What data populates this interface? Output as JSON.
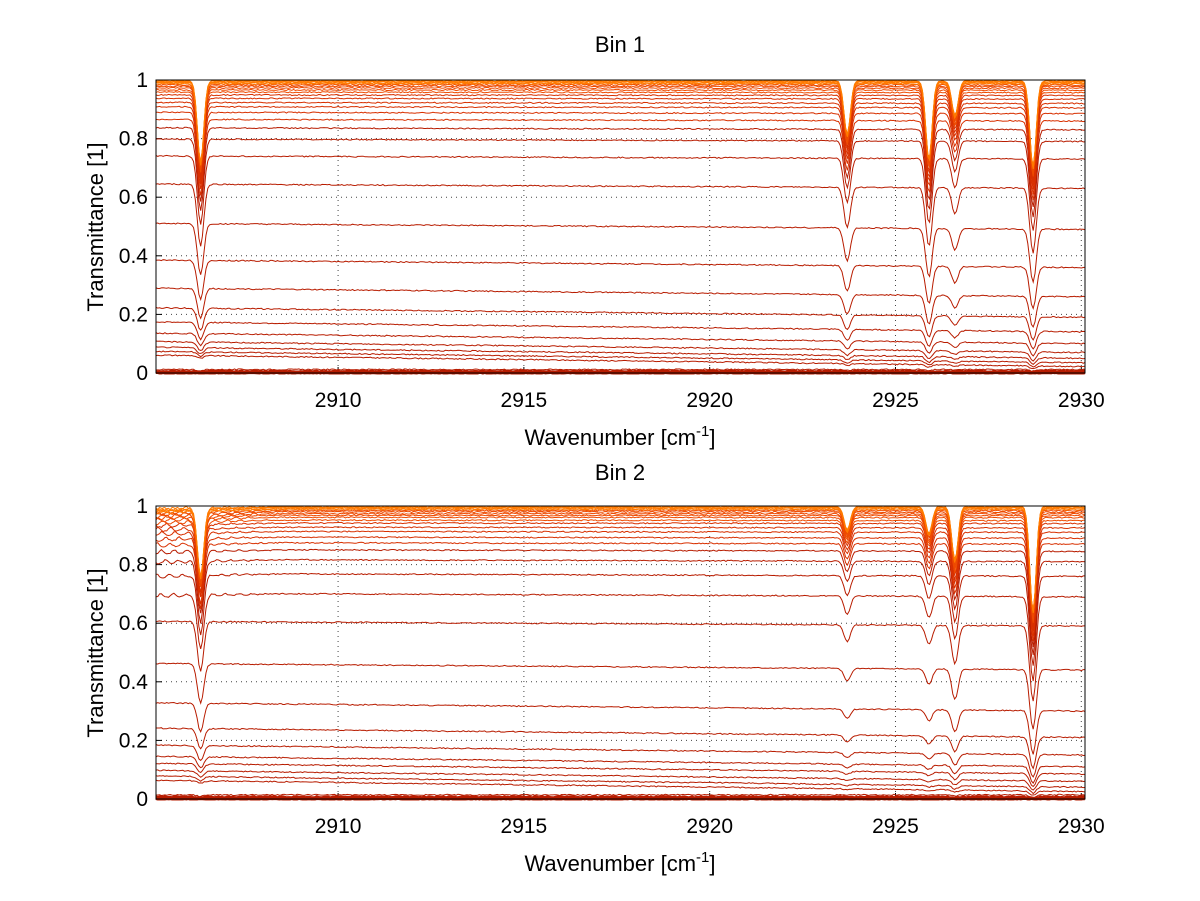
{
  "chart_data": [
    {
      "type": "line",
      "title": "Bin 1",
      "xlabel": "Wavenumber [cm",
      "xlabel_sup": "-1",
      "xlabel_end": "]",
      "ylabel": "Transmittance [1]",
      "xlim": [
        2905.1,
        2930.1
      ],
      "ylim": [
        0,
        1
      ],
      "xticks": [
        "2910",
        "2915",
        "2920",
        "2925",
        "2930"
      ],
      "yticks": [
        "0",
        "0.2",
        "0.4",
        "0.6",
        "0.8",
        "1"
      ],
      "grid": "dotted",
      "absorption_lines": [
        {
          "x": 2906.3,
          "depth": 0.43
        },
        {
          "x": 2923.7,
          "depth": 0.28
        },
        {
          "x": 2925.9,
          "depth": 0.41
        },
        {
          "x": 2926.6,
          "depth": 0.18
        },
        {
          "x": 2928.7,
          "depth": 0.45
        }
      ],
      "baselines": [
        0.0,
        0.005,
        0.012,
        0.022,
        0.035,
        0.05,
        0.07,
        0.1,
        0.14,
        0.19,
        0.26,
        0.36,
        0.49,
        0.63,
        0.73,
        0.79,
        0.83,
        0.86,
        0.885,
        0.905,
        0.92,
        0.935,
        0.947,
        0.957,
        0.965,
        0.972,
        0.978,
        0.983,
        0.987,
        0.99,
        0.993,
        0.995,
        0.997
      ]
    },
    {
      "type": "line",
      "title": "Bin 2",
      "xlabel": "Wavenumber [cm",
      "xlabel_sup": "-1",
      "xlabel_end": "]",
      "ylabel": "Transmittance [1]",
      "xlim": [
        2905.1,
        2930.1
      ],
      "ylim": [
        0,
        1
      ],
      "xticks": [
        "2910",
        "2915",
        "2920",
        "2925",
        "2930"
      ],
      "yticks": [
        "0",
        "0.2",
        "0.4",
        "0.6",
        "0.8",
        "1"
      ],
      "grid": "dotted",
      "absorption_lines": [
        {
          "x": 2906.3,
          "depth": 0.36
        },
        {
          "x": 2923.7,
          "depth": 0.12
        },
        {
          "x": 2925.9,
          "depth": 0.14
        },
        {
          "x": 2926.6,
          "depth": 0.28
        },
        {
          "x": 2928.7,
          "depth": 0.55
        }
      ],
      "baselines": [
        0.0,
        0.006,
        0.014,
        0.025,
        0.04,
        0.06,
        0.085,
        0.11,
        0.15,
        0.21,
        0.3,
        0.44,
        0.59,
        0.69,
        0.76,
        0.81,
        0.845,
        0.87,
        0.89,
        0.91,
        0.925,
        0.94,
        0.95,
        0.96,
        0.967,
        0.973,
        0.979,
        0.984,
        0.988,
        0.991,
        0.994,
        0.996,
        0.998
      ]
    }
  ]
}
